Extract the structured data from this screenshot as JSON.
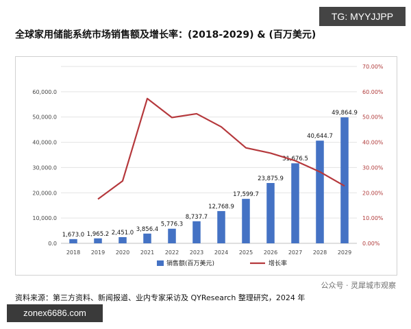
{
  "header": {
    "title": "全球家用储能系统市场销售额及增长率：(2018-2029) & (百万美元)"
  },
  "watermarks": {
    "top": "TG: MYYJJPP",
    "bottom": "zonex6686.com",
    "brand": "公众号 · 灵犀城市观察"
  },
  "footer": {
    "source": "资料来源：第三方资料、新闻报道、业内专家采访及 QYResearch 整理研究，2024 年"
  },
  "chart_data": {
    "type": "bar",
    "categories": [
      "2018",
      "2019",
      "2020",
      "2021",
      "2022",
      "2023",
      "2024",
      "2025",
      "2026",
      "2027",
      "2028",
      "2029"
    ],
    "series": [
      {
        "name": "销售额(百万美元)",
        "type": "bar",
        "axis": "left",
        "color": "#4472c4",
        "values": [
          1673.0,
          1965.2,
          2451.0,
          3856.4,
          5776.3,
          8737.7,
          12768.9,
          17599.7,
          23875.9,
          31676.5,
          40644.7,
          49864.9
        ],
        "labels": [
          "1,673.0",
          "1,965.2",
          "2,451.0",
          "3,856.4",
          "5,776.3",
          "8,737.7",
          "12,768.9",
          "17,599.7",
          "23,875.9",
          "31,676.5",
          "40,644.7",
          "49,864.9"
        ]
      },
      {
        "name": "增长率",
        "type": "line",
        "axis": "right",
        "color": "#b5383c",
        "values": [
          null,
          17.5,
          24.7,
          57.3,
          49.8,
          51.3,
          46.1,
          37.8,
          35.7,
          32.7,
          28.3,
          22.7
        ]
      }
    ],
    "y_left": {
      "range": [
        0,
        70000
      ],
      "ticks": [
        0,
        10000,
        20000,
        30000,
        40000,
        50000,
        60000
      ],
      "tick_labels": [
        "0.0",
        "10,000.0",
        "20,000.0",
        "30,000.0",
        "40,000.0",
        "50,000.0",
        "60,000.0"
      ]
    },
    "y_right": {
      "range": [
        0,
        70
      ],
      "ticks": [
        0,
        10,
        20,
        30,
        40,
        50,
        60,
        70
      ],
      "tick_labels": [
        "0.00%",
        "10.00%",
        "20.00%",
        "30.00%",
        "40.00%",
        "50.00%",
        "60.00%",
        "70.00%"
      ]
    },
    "legend": {
      "placement": "bottom",
      "items": [
        "销售额(百万美元)",
        "增长率"
      ]
    },
    "grid": "horizontal"
  }
}
